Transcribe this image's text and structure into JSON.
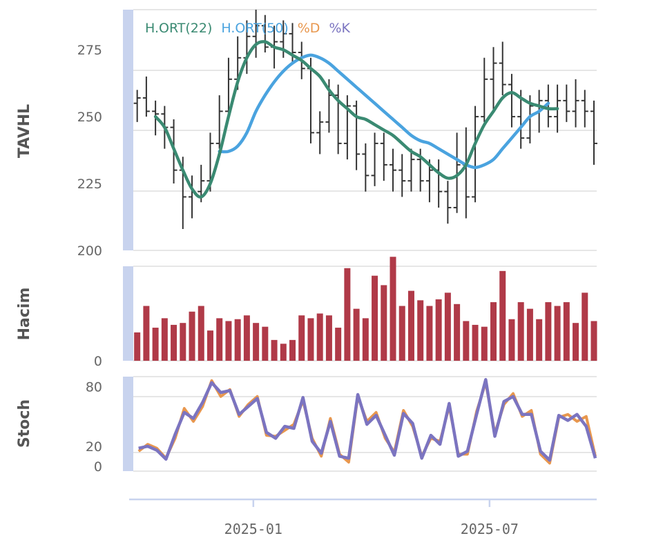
{
  "chart_data": {
    "type": "ohlc",
    "legend": [
      {
        "label": "H.ORT(22)",
        "color": "#3a8a72"
      },
      {
        "label": "H.ORT(50)",
        "color": "#4aa3df"
      },
      {
        "label": "%D",
        "color": "#e8974e"
      },
      {
        "label": "%K",
        "color": "#7b74c0"
      }
    ],
    "x_axis": {
      "start": "2024-10-01",
      "end": "2025-09-19",
      "ticks": [
        {
          "date": "2025-01-01",
          "label": "2025-01"
        },
        {
          "date": "2025-07-01",
          "label": "2025-07"
        }
      ]
    },
    "panels": [
      {
        "id": "price",
        "title": "TAVHL",
        "ylim": [
          200,
          290
        ],
        "ticks": [
          200,
          225,
          250,
          275
        ]
      },
      {
        "id": "volume",
        "title": "Hacim",
        "ylim": [
          0,
          100
        ],
        "ticks": [
          0
        ]
      },
      {
        "id": "stoch",
        "title": "Stoch",
        "ylim": [
          -5,
          90
        ],
        "ticks": [
          0,
          20,
          80
        ]
      }
    ],
    "dates": [
      "2024-10-04",
      "2024-10-11",
      "2024-10-18",
      "2024-10-25",
      "2024-11-01",
      "2024-11-08",
      "2024-11-15",
      "2024-11-22",
      "2024-11-29",
      "2024-12-06",
      "2024-12-13",
      "2024-12-20",
      "2024-12-27",
      "2025-01-03",
      "2025-01-10",
      "2025-01-17",
      "2025-01-24",
      "2025-01-31",
      "2025-02-07",
      "2025-02-14",
      "2025-02-21",
      "2025-02-28",
      "2025-03-07",
      "2025-03-14",
      "2025-03-21",
      "2025-03-28",
      "2025-04-04",
      "2025-04-11",
      "2025-04-18",
      "2025-04-25",
      "2025-05-02",
      "2025-05-09",
      "2025-05-16",
      "2025-05-23",
      "2025-05-30",
      "2025-06-06",
      "2025-06-13",
      "2025-06-20",
      "2025-06-27",
      "2025-07-04",
      "2025-07-11",
      "2025-07-18",
      "2025-07-25",
      "2025-08-01",
      "2025-08-08",
      "2025-08-15",
      "2025-08-22",
      "2025-08-29",
      "2025-09-05",
      "2025-09-12",
      "2025-09-19"
    ],
    "ohlc": [
      [
        255,
        260,
        248,
        257
      ],
      [
        257,
        265,
        250,
        252
      ],
      [
        252,
        256,
        243,
        251
      ],
      [
        251,
        254,
        238,
        246
      ],
      [
        246,
        249,
        225,
        230
      ],
      [
        230,
        235,
        208,
        220
      ],
      [
        220,
        228,
        212,
        222
      ],
      [
        222,
        232,
        218,
        226
      ],
      [
        226,
        244,
        222,
        240
      ],
      [
        240,
        258,
        238,
        252
      ],
      [
        252,
        272,
        250,
        264
      ],
      [
        264,
        280,
        260,
        272
      ],
      [
        272,
        286,
        266,
        280
      ],
      [
        280,
        290,
        272,
        284
      ],
      [
        284,
        288,
        274,
        276
      ],
      [
        276,
        284,
        268,
        278
      ],
      [
        278,
        286,
        272,
        281
      ],
      [
        281,
        285,
        270,
        274
      ],
      [
        274,
        278,
        264,
        268
      ],
      [
        268,
        272,
        240,
        244
      ],
      [
        244,
        252,
        236,
        248
      ],
      [
        248,
        264,
        244,
        258
      ],
      [
        258,
        262,
        236,
        240
      ],
      [
        240,
        258,
        234,
        254
      ],
      [
        254,
        256,
        230,
        236
      ],
      [
        236,
        240,
        222,
        228
      ],
      [
        228,
        244,
        224,
        240
      ],
      [
        240,
        244,
        226,
        232
      ],
      [
        232,
        238,
        222,
        230
      ],
      [
        230,
        236,
        220,
        226
      ],
      [
        226,
        238,
        222,
        234
      ],
      [
        234,
        238,
        222,
        226
      ],
      [
        226,
        234,
        218,
        230
      ],
      [
        230,
        234,
        216,
        222
      ],
      [
        222,
        226,
        210,
        216
      ],
      [
        216,
        244,
        214,
        232
      ],
      [
        232,
        246,
        212,
        220
      ],
      [
        220,
        254,
        218,
        250
      ],
      [
        250,
        272,
        248,
        264
      ],
      [
        264,
        276,
        252,
        270
      ],
      [
        270,
        278,
        258,
        262
      ],
      [
        262,
        266,
        246,
        250
      ],
      [
        250,
        260,
        238,
        242
      ],
      [
        242,
        258,
        240,
        254
      ],
      [
        254,
        260,
        244,
        256
      ],
      [
        256,
        262,
        246,
        250
      ],
      [
        250,
        262,
        244,
        256
      ],
      [
        256,
        262,
        248,
        252
      ],
      [
        252,
        264,
        246,
        256
      ],
      [
        256,
        260,
        246,
        252
      ],
      [
        252,
        256,
        232,
        240
      ]
    ],
    "ma22": {
      "start": 2,
      "values": [
        250,
        246,
        238,
        230,
        223,
        220,
        225,
        236,
        250,
        263,
        272,
        277,
        278,
        276,
        275,
        273,
        271,
        268,
        265,
        260,
        256,
        253,
        250,
        249,
        247,
        245,
        243,
        240,
        237,
        235,
        232,
        229,
        227,
        228,
        232,
        240,
        247,
        252,
        257,
        259,
        257,
        255,
        254,
        253,
        253
      ]
    },
    "ma50": {
      "start": 9,
      "values": [
        237,
        237,
        239,
        244,
        252,
        258,
        263,
        267,
        270,
        272,
        273,
        272,
        270,
        267,
        264,
        261,
        258,
        255,
        252,
        249,
        246,
        243,
        241,
        240,
        238,
        236,
        234,
        232,
        231,
        232,
        234,
        238,
        242,
        246,
        250,
        252,
        255
      ]
    },
    "volume": [
      30,
      58,
      35,
      45,
      38,
      40,
      52,
      58,
      32,
      45,
      42,
      44,
      48,
      40,
      36,
      22,
      18,
      22,
      48,
      45,
      50,
      48,
      35,
      98,
      55,
      45,
      90,
      80,
      110,
      58,
      74,
      64,
      58,
      65,
      72,
      60,
      42,
      38,
      36,
      62,
      95,
      44,
      62,
      55,
      44,
      62,
      58,
      62,
      40,
      72,
      42
    ],
    "stoch_k": [
      18,
      20,
      16,
      7,
      32,
      54,
      48,
      64,
      84,
      74,
      76,
      52,
      60,
      68,
      34,
      28,
      40,
      38,
      69,
      25,
      13,
      45,
      10,
      8,
      72,
      42,
      51,
      31,
      11,
      53,
      43,
      8,
      31,
      22,
      63,
      10,
      15,
      52,
      87,
      30,
      65,
      70,
      52,
      52,
      15,
      6,
      51,
      46,
      52,
      40,
      8
    ],
    "stoch_d": [
      15,
      22,
      18,
      8,
      28,
      58,
      45,
      60,
      86,
      70,
      77,
      50,
      62,
      70,
      31,
      30,
      36,
      42,
      66,
      28,
      10,
      48,
      12,
      4,
      70,
      45,
      54,
      28,
      14,
      56,
      40,
      10,
      28,
      25,
      60,
      12,
      12,
      55,
      84,
      33,
      62,
      73,
      50,
      56,
      12,
      3,
      49,
      52,
      45,
      50,
      10
    ]
  }
}
